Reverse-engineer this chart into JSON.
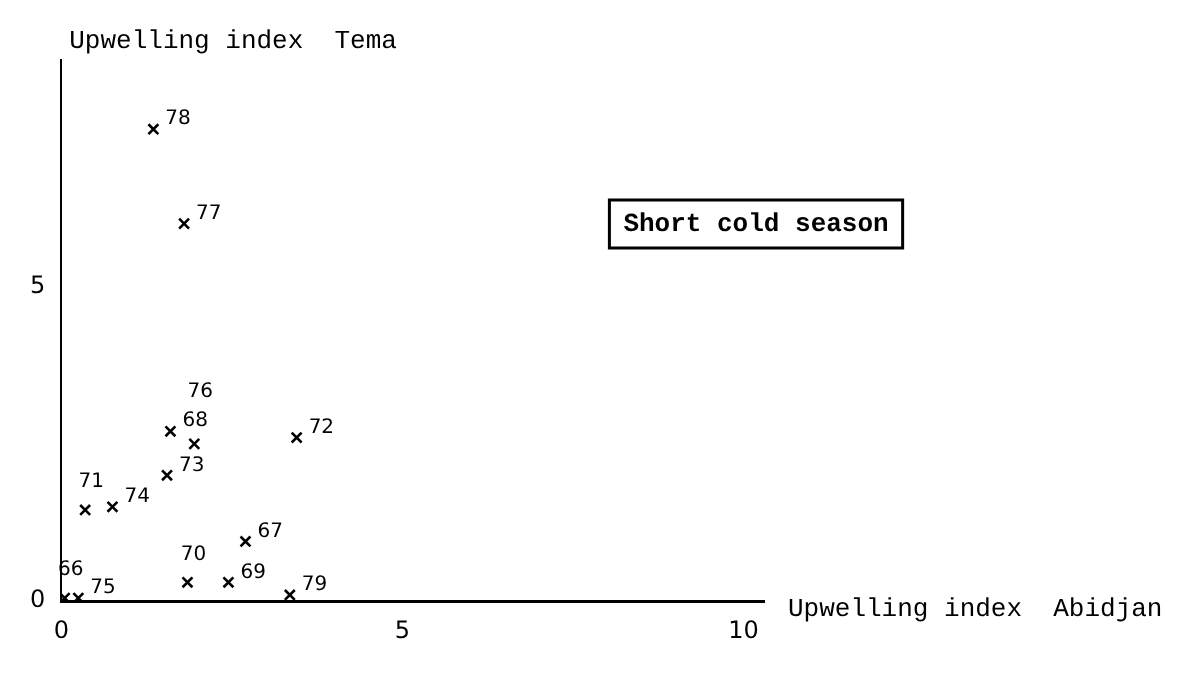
{
  "chart_data": {
    "type": "scatter",
    "xlabel": "Upwelling index  Abidjan",
    "ylabel": "Upwelling index  Tema",
    "x": [
      0.05,
      2.7,
      1.6,
      2.45,
      1.85,
      0.35,
      3.45,
      1.55,
      0.75,
      0.25,
      1.95,
      1.8,
      1.35,
      3.35
    ],
    "values": [
      0.05,
      0.95,
      2.7,
      0.3,
      0.3,
      1.45,
      2.6,
      2.0,
      1.5,
      0.05,
      2.5,
      6.0,
      7.5,
      0.1
    ],
    "color": "#000000",
    "marker": "cross",
    "grid": false,
    "legend": false,
    "xlim": [
      0,
      10.3
    ],
    "ylim": [
      0,
      8.6
    ],
    "xticks": [
      0,
      5,
      10
    ],
    "yticks": [
      0,
      5
    ],
    "annotations": [
      {
        "text": "66",
        "x": 0.05,
        "y": 0.05
      },
      {
        "text": "67",
        "x": 2.7,
        "y": 0.95
      },
      {
        "text": "68",
        "x": 1.6,
        "y": 2.7
      },
      {
        "text": "69",
        "x": 2.45,
        "y": 0.3
      },
      {
        "text": "70",
        "x": 1.85,
        "y": 0.3
      },
      {
        "text": "71",
        "x": 0.35,
        "y": 1.45
      },
      {
        "text": "72",
        "x": 3.45,
        "y": 2.6
      },
      {
        "text": "73",
        "x": 1.55,
        "y": 2.0
      },
      {
        "text": "74",
        "x": 0.75,
        "y": 1.5
      },
      {
        "text": "75",
        "x": 0.25,
        "y": 0.05
      },
      {
        "text": "76",
        "x": 1.95,
        "y": 2.5
      },
      {
        "text": "77",
        "x": 1.8,
        "y": 6.0
      },
      {
        "text": "78",
        "x": 1.35,
        "y": 7.5
      },
      {
        "text": "79",
        "x": 3.35,
        "y": 0.1
      },
      "Short cold season"
    ]
  }
}
